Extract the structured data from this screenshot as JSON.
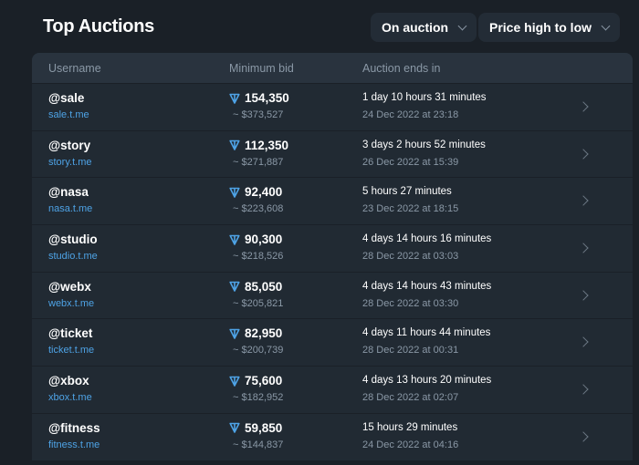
{
  "header": {
    "title": "Top Auctions",
    "filter": "On auction",
    "sort": "Price high to low"
  },
  "columns": [
    "Username",
    "Minimum bid",
    "Auction ends in"
  ],
  "colors": {
    "link": "#4ea3e6",
    "ton": "#4ea3e6"
  },
  "rows": [
    {
      "username": "@sale",
      "link": "sale.t.me",
      "bid": "154,350",
      "usd": "~ $373,527",
      "ends": "1 day 10 hours 31 minutes",
      "date": "24 Dec 2022 at 23:18"
    },
    {
      "username": "@story",
      "link": "story.t.me",
      "bid": "112,350",
      "usd": "~ $271,887",
      "ends": "3 days 2 hours 52 minutes",
      "date": "26 Dec 2022 at 15:39"
    },
    {
      "username": "@nasa",
      "link": "nasa.t.me",
      "bid": "92,400",
      "usd": "~ $223,608",
      "ends": "5 hours 27 minutes",
      "date": "23 Dec 2022 at 18:15"
    },
    {
      "username": "@studio",
      "link": "studio.t.me",
      "bid": "90,300",
      "usd": "~ $218,526",
      "ends": "4 days 14 hours 16 minutes",
      "date": "28 Dec 2022 at 03:03"
    },
    {
      "username": "@webx",
      "link": "webx.t.me",
      "bid": "85,050",
      "usd": "~ $205,821",
      "ends": "4 days 14 hours 43 minutes",
      "date": "28 Dec 2022 at 03:30"
    },
    {
      "username": "@ticket",
      "link": "ticket.t.me",
      "bid": "82,950",
      "usd": "~ $200,739",
      "ends": "4 days 11 hours 44 minutes",
      "date": "28 Dec 2022 at 00:31"
    },
    {
      "username": "@xbox",
      "link": "xbox.t.me",
      "bid": "75,600",
      "usd": "~ $182,952",
      "ends": "4 days 13 hours 20 minutes",
      "date": "28 Dec 2022 at 02:07"
    },
    {
      "username": "@fitness",
      "link": "fitness.t.me",
      "bid": "59,850",
      "usd": "~ $144,837",
      "ends": "15 hours 29 minutes",
      "date": "24 Dec 2022 at 04:16"
    }
  ]
}
